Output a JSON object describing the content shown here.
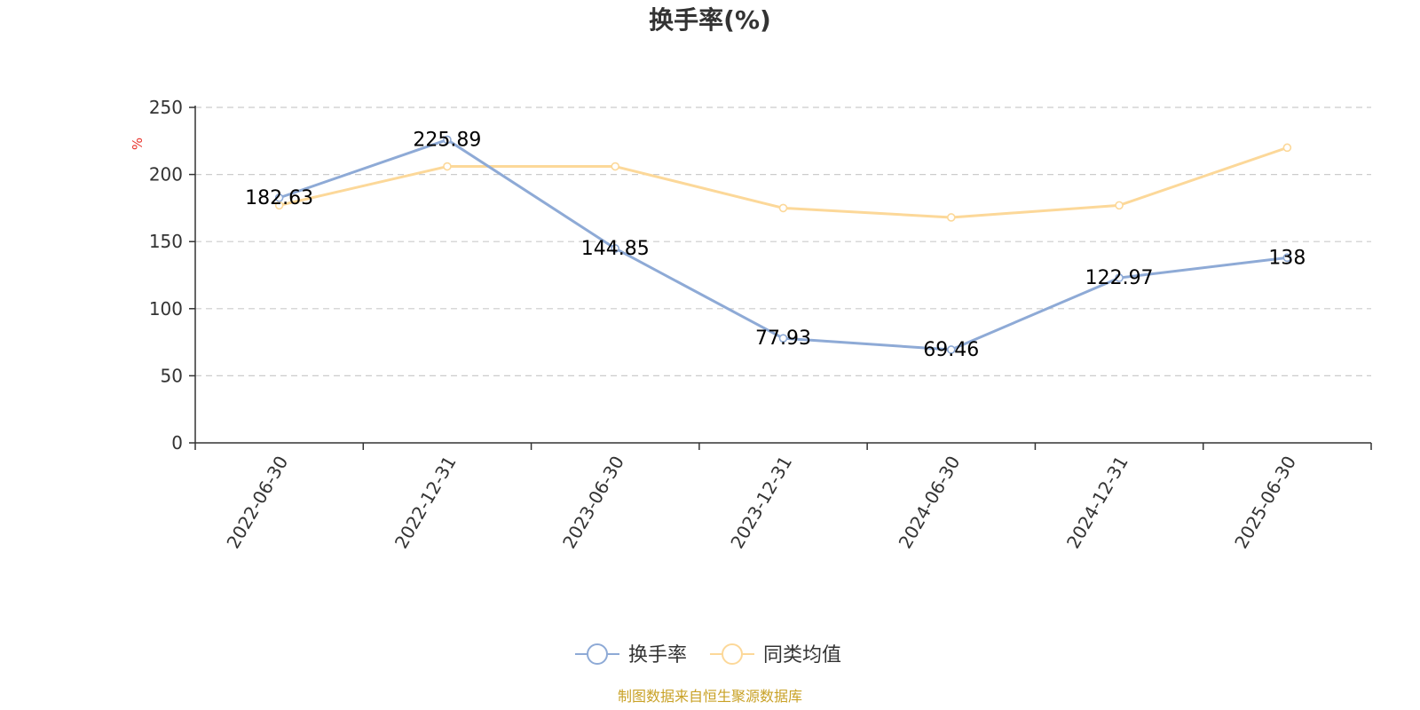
{
  "chart_data": {
    "type": "line",
    "title": "换手率(%)",
    "ylabel": "%",
    "xlabel": "",
    "categories": [
      "2022-06-30",
      "2022-12-31",
      "2023-06-30",
      "2023-12-31",
      "2024-06-30",
      "2024-12-31",
      "2025-06-30"
    ],
    "ylim": [
      0,
      250
    ],
    "yticks": [
      0,
      50,
      100,
      150,
      200,
      250
    ],
    "grid": true,
    "legend_position": "bottom-center",
    "series": [
      {
        "name": "换手率",
        "color": "#8eaad6",
        "values": [
          182.63,
          225.89,
          144.85,
          77.93,
          69.46,
          122.97,
          138
        ],
        "labels": [
          "182.63",
          "225.89",
          "144.85",
          "77.93",
          "69.46",
          "122.97",
          "138"
        ]
      },
      {
        "name": "同类均值",
        "color": "#fcd899",
        "values": [
          177,
          206,
          206,
          175,
          168,
          177,
          220
        ]
      }
    ]
  },
  "colors": {
    "axis": "#333333",
    "grid": "#cccccc",
    "unit": "#e8332b",
    "source": "#c9a227"
  },
  "source": "制图数据来自恒生聚源数据库"
}
